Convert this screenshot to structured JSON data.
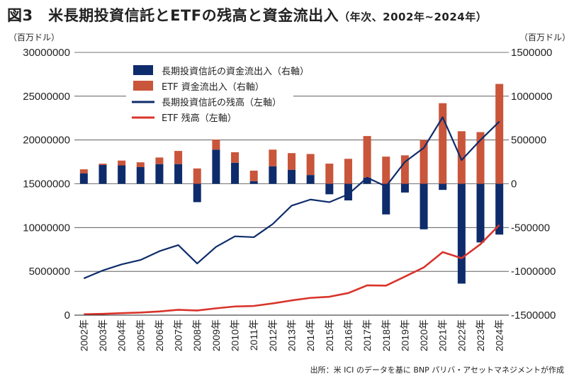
{
  "header": {
    "title": "図3　米長期投資信託とETFの残高と資金流出入",
    "subtitle": "（年次、2002年~2024年）"
  },
  "units": {
    "left": "（百万ドル）",
    "right": "（百万ドル）"
  },
  "source": "出所：米 ICI のデータを基に BNP パリバ・アセットマネジメントが作成",
  "colors": {
    "mf_flow": "#0e2c6b",
    "etf_flow": "#c9553b",
    "mf_assets": "#0e2c6b",
    "etf_assets": "#d9342a"
  },
  "chart_data": {
    "type": "bar",
    "categories": [
      "2002年",
      "2003年",
      "2004年",
      "2005年",
      "2006年",
      "2007年",
      "2008年",
      "2009年",
      "2010年",
      "2011年",
      "2012年",
      "2013年",
      "2014年",
      "2015年",
      "2016年",
      "2017年",
      "2018年",
      "2019年",
      "2020年",
      "2021年",
      "2022年",
      "2023年",
      "2024年"
    ],
    "left_axis": {
      "ylim": [
        0,
        30000000
      ],
      "ticks": [
        "0",
        "5000000",
        "10000000",
        "15000000",
        "20000000",
        "25000000",
        "30000000"
      ]
    },
    "right_axis": {
      "ylim": [
        -1500000,
        1500000
      ],
      "ticks": [
        "-1500000",
        "-1000000",
        "-500000",
        "0",
        "500000",
        "1000000",
        "1500000"
      ]
    },
    "legend_position": "top-center",
    "grid": "horizontal",
    "series": [
      {
        "name": "長期投資信託の資金流出入（右軸）",
        "type": "bar",
        "axis": "right",
        "stack": "flow",
        "values": [
          120000,
          215000,
          210000,
          190000,
          225000,
          225000,
          -210000,
          390000,
          240000,
          30000,
          200000,
          160000,
          100000,
          -120000,
          -190000,
          70000,
          -350000,
          -100000,
          -520000,
          -70000,
          -1140000,
          -670000,
          -580000
        ]
      },
      {
        "name": "ETF 資金流出入（右軸）",
        "type": "bar",
        "axis": "right",
        "stack": "flow",
        "values": [
          45000,
          15000,
          55000,
          55000,
          75000,
          150000,
          175000,
          115000,
          120000,
          120000,
          190000,
          190000,
          240000,
          230000,
          285000,
          475000,
          310000,
          325000,
          500000,
          920000,
          600000,
          590000,
          1140000
        ]
      },
      {
        "name": "長期投資信託の残高（左軸）",
        "type": "line",
        "axis": "left",
        "values": [
          4200000,
          5100000,
          5800000,
          6300000,
          7300000,
          8000000,
          5900000,
          7800000,
          9000000,
          8900000,
          10400000,
          12500000,
          13200000,
          12900000,
          13800000,
          15700000,
          14700000,
          17500000,
          19100000,
          22600000,
          17700000,
          20000000,
          22100000
        ]
      },
      {
        "name": "ETF 残高（左軸）",
        "type": "line",
        "axis": "left",
        "values": [
          100000,
          150000,
          230000,
          300000,
          420000,
          610000,
          530000,
          780000,
          990000,
          1050000,
          1340000,
          1680000,
          1970000,
          2100000,
          2520000,
          3400000,
          3370000,
          4400000,
          5450000,
          7200000,
          6500000,
          8100000,
          10300000
        ]
      }
    ]
  }
}
